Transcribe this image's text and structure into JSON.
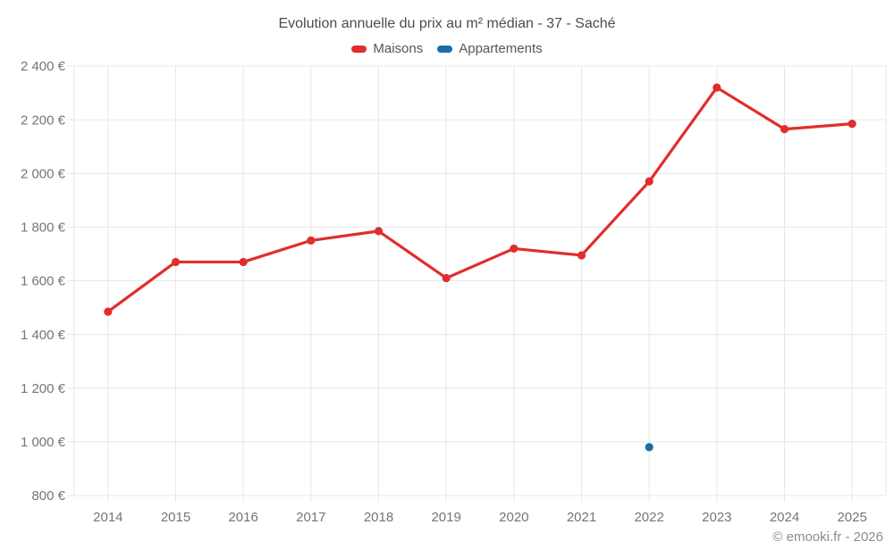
{
  "page": {
    "background": "#ffffff"
  },
  "chart_data": {
    "type": "line",
    "title": "Evolution annuelle du prix au m² médian - 37 - Saché",
    "categories": [
      "2014",
      "2015",
      "2016",
      "2017",
      "2018",
      "2019",
      "2020",
      "2021",
      "2022",
      "2023",
      "2024",
      "2025"
    ],
    "series": [
      {
        "name": "Maisons",
        "color": "#e12d2d",
        "values": [
          1485,
          1670,
          1670,
          1750,
          1785,
          1610,
          1720,
          1695,
          1970,
          2320,
          2165,
          2185
        ]
      },
      {
        "name": "Appartements",
        "color": "#1b6ea5",
        "values": [
          null,
          null,
          null,
          null,
          null,
          null,
          null,
          null,
          980,
          null,
          null,
          null
        ]
      }
    ],
    "ylim": [
      800,
      2400
    ],
    "ytick_step": 200,
    "y_unit": "€",
    "grid": true,
    "legend_position": "top",
    "watermark": "© emooki.fr - 2026"
  },
  "colors": {
    "grid": "#e7e7e7",
    "tick_text": "#757575",
    "title_text": "#4c4c4c",
    "legend_text": "#555555",
    "watermark_text": "#8c8c8c"
  }
}
